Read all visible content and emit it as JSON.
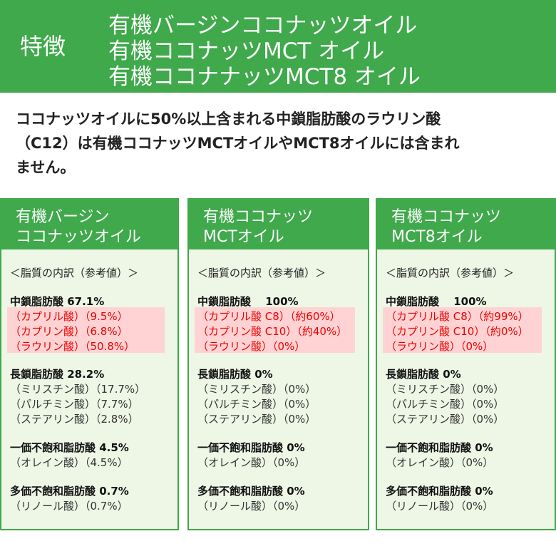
{
  "header": {
    "label": "特徴",
    "title_lines": [
      "有機バージンココナッツオイル",
      "有機ココナッツMCT オイル",
      "有機ココナナッツMCT8 オイル"
    ]
  },
  "intro_lines": [
    "ココナッツオイルに50%以上含まれる中鎖脂肪酸のラウリン酸",
    "（C12）は有機ココナッツMCTオイルやMCT8オイルには含まれ",
    "ません。"
  ],
  "panels": [
    {
      "title_lines": [
        "有機バージン",
        "ココナッツオイル"
      ],
      "breakdown_label": "＜脂質の内訳（参考値）＞",
      "groups": [
        {
          "title": "中鎖脂肪酸 67.1%",
          "items": [
            "（カプリル酸）（9.5%）",
            "（カプリン酸）（6.8%）",
            "（ラウリン酸）（50.8%）"
          ]
        },
        {
          "title": "長鎖脂肪酸 28.2%",
          "items": [
            "（ミリスチン酸）（17.7%）",
            "（パルチミン酸）（7.7%）",
            "（ステアリン酸）（2.8%）"
          ]
        },
        {
          "title": "一価不飽和脂肪酸 4.5%",
          "items": [
            "（オレイン酸）（4.5%）"
          ]
        },
        {
          "title": "多価不飽和脂肪酸 0.7%",
          "items": [
            "（リノール酸）（0.7%）"
          ]
        }
      ]
    },
    {
      "title_lines": [
        "有機ココナッツ",
        "MCTオイル"
      ],
      "breakdown_label": "＜脂質の内訳（参考値）＞",
      "groups": [
        {
          "title": "中鎖脂肪酸　 100%",
          "items": [
            "（カプリル酸 C8）（約60%）",
            "（カプリン酸 C10）（約40%）",
            "（ラウリン酸）（0%）"
          ]
        },
        {
          "title": "長鎖脂肪酸 0%",
          "items": [
            "（ミリスチン酸）（0%）",
            "（パルチミン酸）（0%）",
            "（ステアリン酸）（0%）"
          ]
        },
        {
          "title": "一価不飽和脂肪酸 0%",
          "items": [
            "（オレイン酸）（0%）"
          ]
        },
        {
          "title": "多価不飽和脂肪酸 0%",
          "items": [
            "（リノール酸）（0%）"
          ]
        }
      ]
    },
    {
      "title_lines": [
        "有機ココナッツ",
        "MCT8オイル"
      ],
      "breakdown_label": "＜脂質の内訳（参考値）＞",
      "groups": [
        {
          "title": "中鎖脂肪酸　 100%",
          "items": [
            "（カプリル酸 C8）（約99%）",
            "（カプリン酸 C10）（約0%）",
            "（ラウリン酸）（0%）"
          ]
        },
        {
          "title": "長鎖脂肪酸 0%",
          "items": [
            "（ミリスチン酸）（0%）",
            "（パルチミン酸）（0%）",
            "（ステアリン酸）（0%）"
          ]
        },
        {
          "title": "一価不飽和脂肪酸 0%",
          "items": [
            "（オレイン酸）（0%）"
          ]
        },
        {
          "title": "多価不飽和脂肪酸 0%",
          "items": [
            "（リノール酸）（0%）"
          ]
        }
      ]
    }
  ]
}
